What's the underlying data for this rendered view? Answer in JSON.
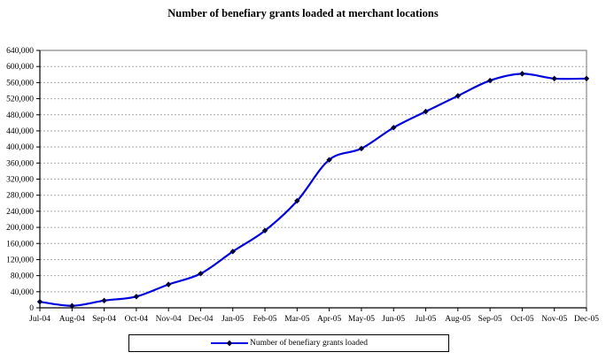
{
  "chart_data": {
    "type": "line",
    "title": "Number of benefiary grants loaded at merchant locations",
    "x": [
      "Jul-04",
      "Aug-04",
      "Sep-04",
      "Oct-04",
      "Nov-04",
      "Dec-04",
      "Jan-05",
      "Feb-05",
      "Mar-05",
      "Apr-05",
      "May-05",
      "Jun-05",
      "Jul-05",
      "Aug-05",
      "Sep-05",
      "Oct-05",
      "Nov-05",
      "Dec-05"
    ],
    "series": [
      {
        "name": "Number of benefiary grants loaded",
        "values": [
          15000,
          5000,
          18000,
          28000,
          58000,
          85000,
          140000,
          192000,
          266000,
          368000,
          396000,
          448000,
          488000,
          527000,
          565000,
          582000,
          570000,
          570000
        ]
      }
    ],
    "xlabel": "",
    "ylabel": "",
    "ylim": [
      0,
      640000
    ],
    "ytick_step": 40000,
    "yticks": [
      "0",
      "40,000",
      "80,000",
      "120,000",
      "160,000",
      "200,000",
      "240,000",
      "280,000",
      "320,000",
      "360,000",
      "400,000",
      "440,000",
      "480,000",
      "520,000",
      "560,000",
      "600,000",
      "640,000"
    ],
    "grid": "horizontal-dashed",
    "legend_position": "bottom",
    "smooth": true,
    "marker": "diamond"
  },
  "legend": {
    "label": "Number of benefiary grants loaded"
  },
  "colors": {
    "line": "#0000dd",
    "marker": "#000033",
    "grid": "#a9a9a9",
    "plot_border": "#888888",
    "axis": "#000000",
    "background": "#ffffff"
  }
}
